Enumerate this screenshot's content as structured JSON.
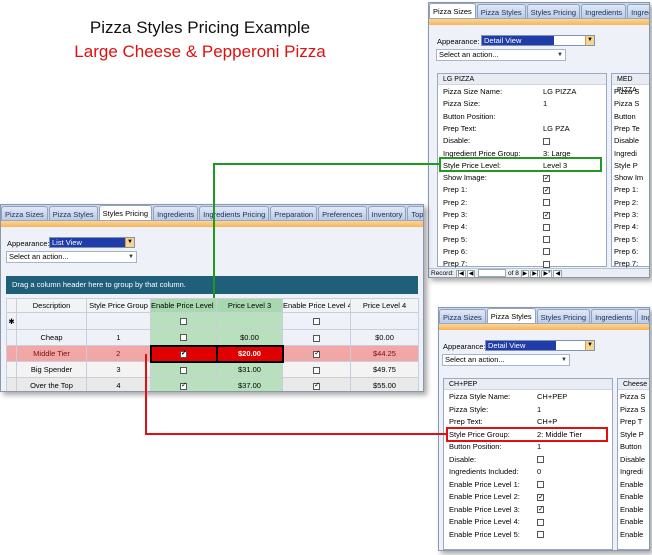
{
  "title": "Pizza Styles Pricing Example",
  "subtitle": "Large Cheese & Pepperoni Pizza",
  "colors": {
    "accent_green": "#1f9a1f",
    "accent_red": "#e01010",
    "grid_green": "#b9e0bd",
    "tab_orange": "#f5b55a"
  },
  "top_panel": {
    "tabs": [
      "Pizza Sizes",
      "Pizza Styles",
      "Styles Pricing",
      "Ingredients",
      "Ingredients"
    ],
    "appearance_label": "Appearance:",
    "appearance_value": "Detail View",
    "action_placeholder": "Select an action...",
    "record_header": "LG PIZZA",
    "record_header_2": "MED PIZZA",
    "fields": [
      {
        "label": "Pizza Size Name:",
        "value": "LG PIZZA"
      },
      {
        "label": "Pizza Size:",
        "value": "1"
      },
      {
        "label": "Button Position:",
        "value": ""
      },
      {
        "label": "Prep Text:",
        "value": "LG PZA"
      },
      {
        "label": "Disable:",
        "check": false
      },
      {
        "label": "Ingredient Price Group:",
        "value": "3: Large"
      },
      {
        "label": "Style Price Level:",
        "value": "Level 3"
      },
      {
        "label": "Show Image:",
        "check": true
      },
      {
        "label": "Prep 1:",
        "check": true
      },
      {
        "label": "Prep 2:",
        "check": false
      },
      {
        "label": "Prep 3:",
        "check": true
      },
      {
        "label": "Prep 4:",
        "check": false
      },
      {
        "label": "Prep 5:",
        "check": false
      },
      {
        "label": "Prep 6:",
        "check": false
      },
      {
        "label": "Prep 7:",
        "check": false
      }
    ],
    "col2_labels": [
      "Pizza S",
      "Pizza S",
      "Button",
      "Prep Te",
      "Disable",
      "Ingredi",
      "Style P",
      "Show Im",
      "Prep 1:",
      "Prep 2:",
      "Prep 3:",
      "Prep 4:",
      "Prep 5:",
      "Prep 6:",
      "Prep 7:"
    ],
    "record_label": "Record:",
    "record_of": "of 8"
  },
  "grid_panel": {
    "tabs": [
      "Pizza Sizes",
      "Pizza Styles",
      "Styles Pricing",
      "Ingredients",
      "Ingredients Pricing",
      "Preparation",
      "Preferences",
      "Inventory",
      "Top Sellers"
    ],
    "appearance_label": "Appearance:",
    "appearance_value": "List View",
    "action_placeholder": "Select an action...",
    "group_hint": "Drag a column header here to group by that column.",
    "columns": [
      "Description",
      "Style Price Group",
      "Enable Price Level 3",
      "Price Level 3",
      "Enable Price Level 4",
      "Price Level 4"
    ],
    "filter_star": "✱",
    "rows": [
      {
        "description": "Cheap",
        "group": "1",
        "enable3": false,
        "price3": "$0.00",
        "enable4": false,
        "price4": "$0.00"
      },
      {
        "description": "Middle Tier",
        "group": "2",
        "enable3": true,
        "price3": "$20.00",
        "enable4": true,
        "price4": "$44.25"
      },
      {
        "description": "Big Spender",
        "group": "3",
        "enable3": false,
        "price3": "$31.00",
        "enable4": false,
        "price4": "$49.75"
      },
      {
        "description": "Over the Top",
        "group": "4",
        "enable3": true,
        "price3": "$37.00",
        "enable4": true,
        "price4": "$55.00"
      }
    ]
  },
  "bottom_panel": {
    "tabs": [
      "Pizza Sizes",
      "Pizza Styles",
      "Styles Pricing",
      "Ingredients",
      "Ingredients"
    ],
    "appearance_label": "Appearance:",
    "appearance_value": "Detail View",
    "action_placeholder": "Select an action...",
    "record_header": "CH+PEP",
    "record_header_2": "Cheese",
    "fields": [
      {
        "label": "Pizza Style Name:",
        "value": "CH+PEP"
      },
      {
        "label": "Pizza Style:",
        "value": "1"
      },
      {
        "label": "Prep Text:",
        "value": "CH+P"
      },
      {
        "label": "Style Price Group:",
        "value": "2: Middle Tier"
      },
      {
        "label": "Button Position:",
        "value": "1"
      },
      {
        "label": "Disable:",
        "check": false
      },
      {
        "label": "Ingredients Included:",
        "value": "0"
      },
      {
        "label": "Enable Price Level 1:",
        "check": false
      },
      {
        "label": "Enable Price Level 2:",
        "check": true
      },
      {
        "label": "Enable Price Level 3:",
        "check": true
      },
      {
        "label": "Enable Price Level 4:",
        "check": false
      },
      {
        "label": "Enable Price Level 5:",
        "check": false
      }
    ],
    "col2_labels": [
      "Pizza S",
      "Pizza S",
      "Prep T",
      "Style P",
      "Button",
      "Disable",
      "Ingredi",
      "Enable",
      "Enable",
      "Enable",
      "Enable",
      "Enable"
    ]
  }
}
